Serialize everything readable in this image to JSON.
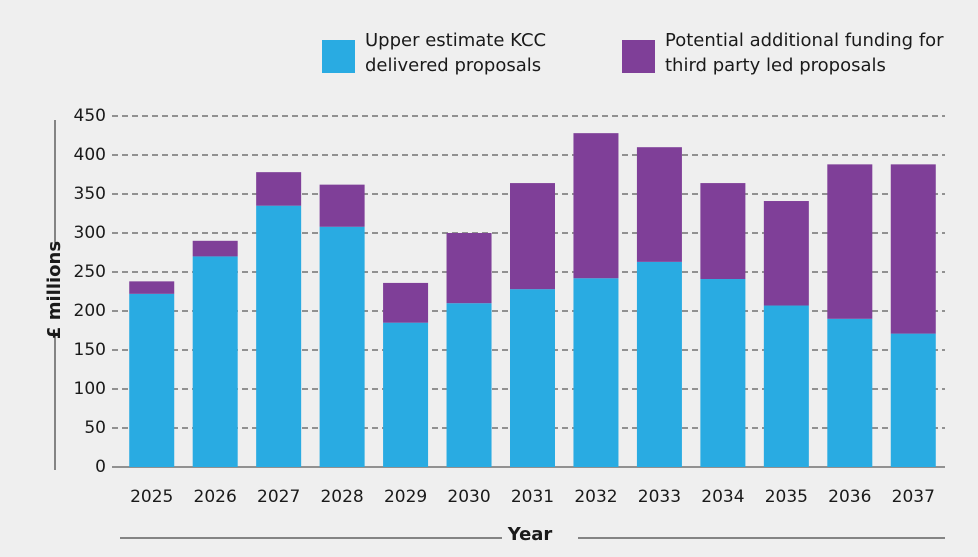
{
  "chart_data": {
    "type": "stacked_bar",
    "categories": [
      "2025",
      "2026",
      "2027",
      "2028",
      "2029",
      "2030",
      "2031",
      "2032",
      "2033",
      "2034",
      "2035",
      "2036",
      "2037"
    ],
    "series": [
      {
        "name": "Upper estimate KCC delivered proposals",
        "color": "#29abe2",
        "values": [
          222,
          270,
          335,
          308,
          185,
          210,
          228,
          242,
          263,
          241,
          207,
          190,
          171
        ]
      },
      {
        "name": "Potential additional funding for third party led proposals",
        "color": "#7f3f98",
        "values": [
          16,
          20,
          43,
          54,
          51,
          90,
          136,
          186,
          147,
          123,
          134,
          198,
          217
        ]
      }
    ],
    "ylim": [
      0,
      450
    ],
    "yticks": [
      0,
      50,
      100,
      150,
      200,
      250,
      300,
      350,
      400,
      450
    ],
    "ylabel": "£ millions",
    "xlabel": "Year",
    "grid": true
  }
}
